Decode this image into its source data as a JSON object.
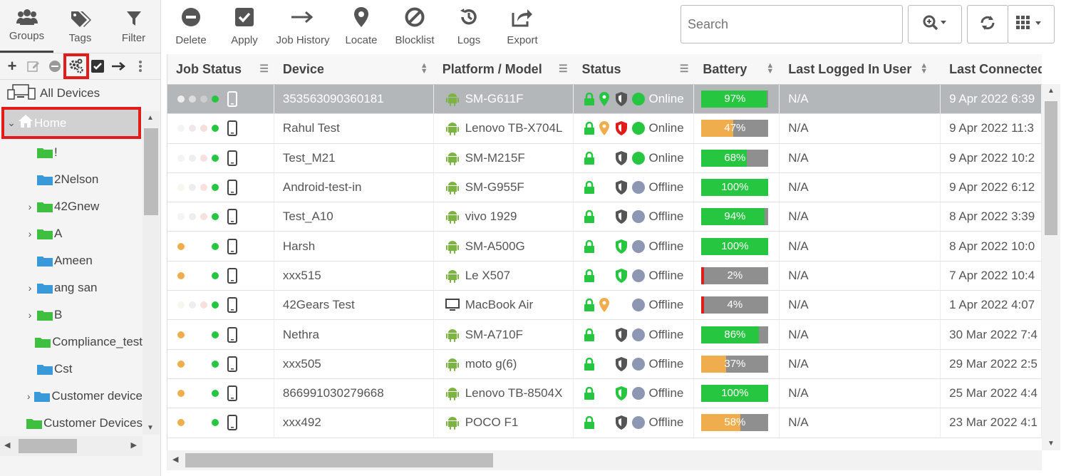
{
  "left_panel": {
    "tabs": [
      {
        "label": "Groups",
        "icon": "groups-icon"
      },
      {
        "label": "Tags",
        "icon": "tags-icon"
      },
      {
        "label": "Filter",
        "icon": "filter-icon"
      }
    ],
    "all_devices_label": "All Devices",
    "home_label": "Home",
    "tree": [
      {
        "label": "!",
        "expandable": false
      },
      {
        "label": "2Nelson",
        "expandable": false
      },
      {
        "label": "42Gnew",
        "expandable": true
      },
      {
        "label": "A",
        "expandable": true
      },
      {
        "label": "Ameen",
        "expandable": false
      },
      {
        "label": "ang san",
        "expandable": true
      },
      {
        "label": "B",
        "expandable": true
      },
      {
        "label": "Compliance_test",
        "expandable": false
      },
      {
        "label": "Cst",
        "expandable": false
      },
      {
        "label": "Customer device",
        "expandable": true
      },
      {
        "label": "Customer Devices",
        "expandable": false
      }
    ]
  },
  "toolbar": {
    "delete": "Delete",
    "apply": "Apply",
    "job_history": "Job History",
    "locate": "Locate",
    "blocklist": "Blocklist",
    "logs": "Logs",
    "export": "Export",
    "search_placeholder": "Search"
  },
  "grid": {
    "columns": [
      "Job Status",
      "Device",
      "Platform / Model",
      "Status",
      "Battery",
      "Last Logged In User",
      "Last Connected"
    ],
    "rows": [
      {
        "job": [
          "#eee",
          "#ddd",
          "#ccc"
        ],
        "device": "353563090360181",
        "platform": "android",
        "model": "SM-G611F",
        "loc": "green",
        "shield": "gray",
        "status": "Online",
        "battery": 97,
        "bcolor": "#26c641",
        "user": "N/A",
        "last": "9 Apr 2022 6:39",
        "selected": true
      },
      {
        "job": [
          "#f4f4f4",
          "#f0e8e8",
          "#f6dede"
        ],
        "device": "Rahul Test",
        "platform": "android",
        "model": "Lenovo TB-X704L",
        "loc": "orange",
        "shield": "red",
        "status": "Online",
        "battery": 47,
        "bcolor": "#f0ad4e",
        "user": "N/A",
        "last": "9 Apr 2022 11:3",
        "selected": false
      },
      {
        "job": [
          "#f4f4f4",
          "#eee",
          "#f6e0e0"
        ],
        "device": "Test_M21",
        "platform": "android",
        "model": "SM-M215F",
        "loc": "",
        "shield": "gray",
        "status": "Online",
        "battery": 68,
        "bcolor": "#26c641",
        "user": "N/A",
        "last": "9 Apr 2022 10:2",
        "selected": false
      },
      {
        "job": [
          "#f7f7ee",
          "#eee",
          "#f6e0e0"
        ],
        "device": "Android-test-in",
        "platform": "android",
        "model": "SM-G955F",
        "loc": "",
        "shield": "gray",
        "status": "Offline",
        "battery": 100,
        "bcolor": "#26c641",
        "user": "N/A",
        "last": "9 Apr 2022 6:12",
        "selected": false
      },
      {
        "job": [
          "#f4f4f4",
          "#eee",
          "#f6e0e0"
        ],
        "device": "Test_A10",
        "platform": "android",
        "model": "vivo 1929",
        "loc": "",
        "shield": "gray",
        "status": "Offline",
        "battery": 94,
        "bcolor": "#26c641",
        "user": "N/A",
        "last": "8 Apr 2022 3:39",
        "selected": false
      },
      {
        "job": [
          "#f0ad4e",
          "#fff",
          "#fff"
        ],
        "device": "Harsh",
        "platform": "android",
        "model": "SM-A500G",
        "loc": "",
        "shield": "green",
        "status": "Offline",
        "battery": 100,
        "bcolor": "#26c641",
        "user": "N/A",
        "last": "8 Apr 2022 10:0",
        "selected": false
      },
      {
        "job": [
          "#f0ad4e",
          "#fff",
          "#fff"
        ],
        "device": "xxx515",
        "platform": "android",
        "model": "Le X507",
        "loc": "",
        "shield": "green",
        "status": "Offline",
        "battery": 2,
        "bcolor": "#e21b1b",
        "user": "N/A",
        "last": "7 Apr 2022 10:4",
        "selected": false
      },
      {
        "job": [
          "#f7f7ee",
          "#eee",
          "#f6e0e0"
        ],
        "device": "42Gears Test",
        "platform": "mac",
        "model": "MacBook Air",
        "loc": "orange",
        "shield": "",
        "status": "Offline",
        "battery": 4,
        "bcolor": "#e21b1b",
        "user": "N/A",
        "last": "1 Apr 2022 4:07",
        "selected": false
      },
      {
        "job": [
          "#f0ad4e",
          "#fff",
          "#fff"
        ],
        "device": "Nethra",
        "platform": "android",
        "model": "SM-A710F",
        "loc": "",
        "shield": "gray",
        "status": "Offline",
        "battery": 86,
        "bcolor": "#26c641",
        "user": "N/A",
        "last": "30 Mar 2022 7:4",
        "selected": false
      },
      {
        "job": [
          "#f0ad4e",
          "#fff",
          "#fff"
        ],
        "device": "xxx505",
        "platform": "android",
        "model": "moto g(6)",
        "loc": "",
        "shield": "gray",
        "status": "Offline",
        "battery": 37,
        "bcolor": "#f0ad4e",
        "user": "N/A",
        "last": "29 Mar 2022 2:5",
        "selected": false
      },
      {
        "job": [
          "#f0ad4e",
          "#fff",
          "#fff"
        ],
        "device": "866991030279668",
        "platform": "android",
        "model": "Lenovo TB-8504X",
        "loc": "",
        "shield": "green",
        "status": "Offline",
        "battery": 100,
        "bcolor": "#26c641",
        "user": "N/A",
        "last": "25 Mar 2022 4:4",
        "selected": false
      },
      {
        "job": [
          "#f0ad4e",
          "#fff",
          "#fff"
        ],
        "device": "xxx492",
        "platform": "android",
        "model": "POCO F1",
        "loc": "",
        "shield": "gray",
        "status": "Offline",
        "battery": 58,
        "bcolor": "#f0ad4e",
        "user": "N/A",
        "last": "23 Mar 2022 4:1",
        "selected": false
      }
    ]
  },
  "colors": {
    "online": "#26c641",
    "offline": "#8d96b3",
    "highlight": "#e21b1b",
    "android": "#7cb342"
  }
}
